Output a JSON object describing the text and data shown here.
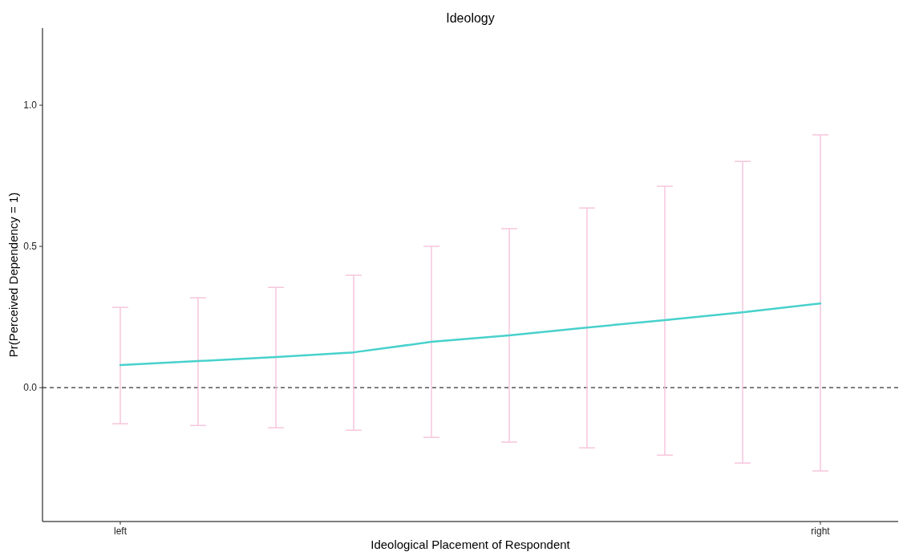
{
  "chart_data": {
    "type": "line",
    "title": "Ideology",
    "xlabel": "Ideological Placement of Respondent",
    "ylabel": "Pr(Perceived Dependency = 1)",
    "categories": [
      "left",
      null,
      null,
      null,
      null,
      null,
      null,
      null,
      null,
      "right"
    ],
    "series": [
      {
        "color": "#48d1cc",
        "values": [
          0.08,
          0.094,
          0.108,
          0.125,
          0.162,
          0.185,
          0.213,
          0.239,
          0.267,
          0.298
        ],
        "errors": [
          [
            -0.128,
            0.284
          ],
          [
            -0.134,
            0.318
          ],
          [
            -0.142,
            0.355
          ],
          [
            -0.151,
            0.398
          ],
          [
            -0.176,
            0.5
          ],
          [
            -0.193,
            0.563
          ],
          [
            -0.213,
            0.636
          ],
          [
            -0.239,
            0.713
          ],
          [
            -0.267,
            0.801
          ],
          [
            -0.295,
            0.895
          ]
        ]
      }
    ],
    "ylim": [
      -0.474,
      1.273
    ],
    "yticks": [
      {
        "value": 0,
        "label": "0.0"
      },
      {
        "value": 0.5,
        "label": "0.5"
      },
      {
        "value": 1,
        "label": "1.0"
      }
    ],
    "ref_lines": [
      {
        "axis": "y",
        "value": 0,
        "color": "#333333",
        "line_style": "dashed"
      }
    ],
    "grid": false,
    "marker": "none",
    "line_style": "solid"
  }
}
